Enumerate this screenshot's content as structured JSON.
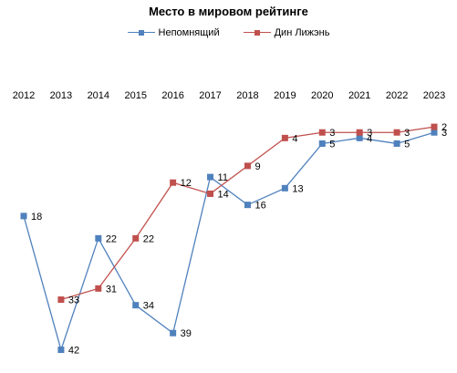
{
  "chart_data": {
    "type": "line",
    "title": "Место в мировом рейтинге",
    "x": [
      "2012",
      "2013",
      "2014",
      "2015",
      "2016",
      "2017",
      "2018",
      "2019",
      "2020",
      "2021",
      "2022",
      "2023"
    ],
    "y_axis_reversed": true,
    "ylim": [
      1,
      46
    ],
    "legend_position": "top",
    "grid": false,
    "series": [
      {
        "name": "Непомнящий",
        "color": "#4f81bd",
        "values": [
          18,
          42,
          22,
          34,
          39,
          11,
          16,
          13,
          5,
          4,
          5,
          3
        ],
        "labels": [
          "18",
          "42",
          "22",
          "34",
          "39",
          "11",
          "16",
          "13",
          "5",
          "4",
          "5",
          "3"
        ]
      },
      {
        "name": "Дин Лижэнь",
        "color": "#c0504d",
        "values": [
          null,
          33,
          31,
          22,
          12,
          14,
          9,
          4,
          3,
          3,
          3,
          2
        ],
        "labels": [
          "",
          "33",
          "31",
          "22",
          "12",
          "14",
          "9",
          "4",
          "3",
          "3",
          "3",
          "2"
        ]
      }
    ]
  }
}
